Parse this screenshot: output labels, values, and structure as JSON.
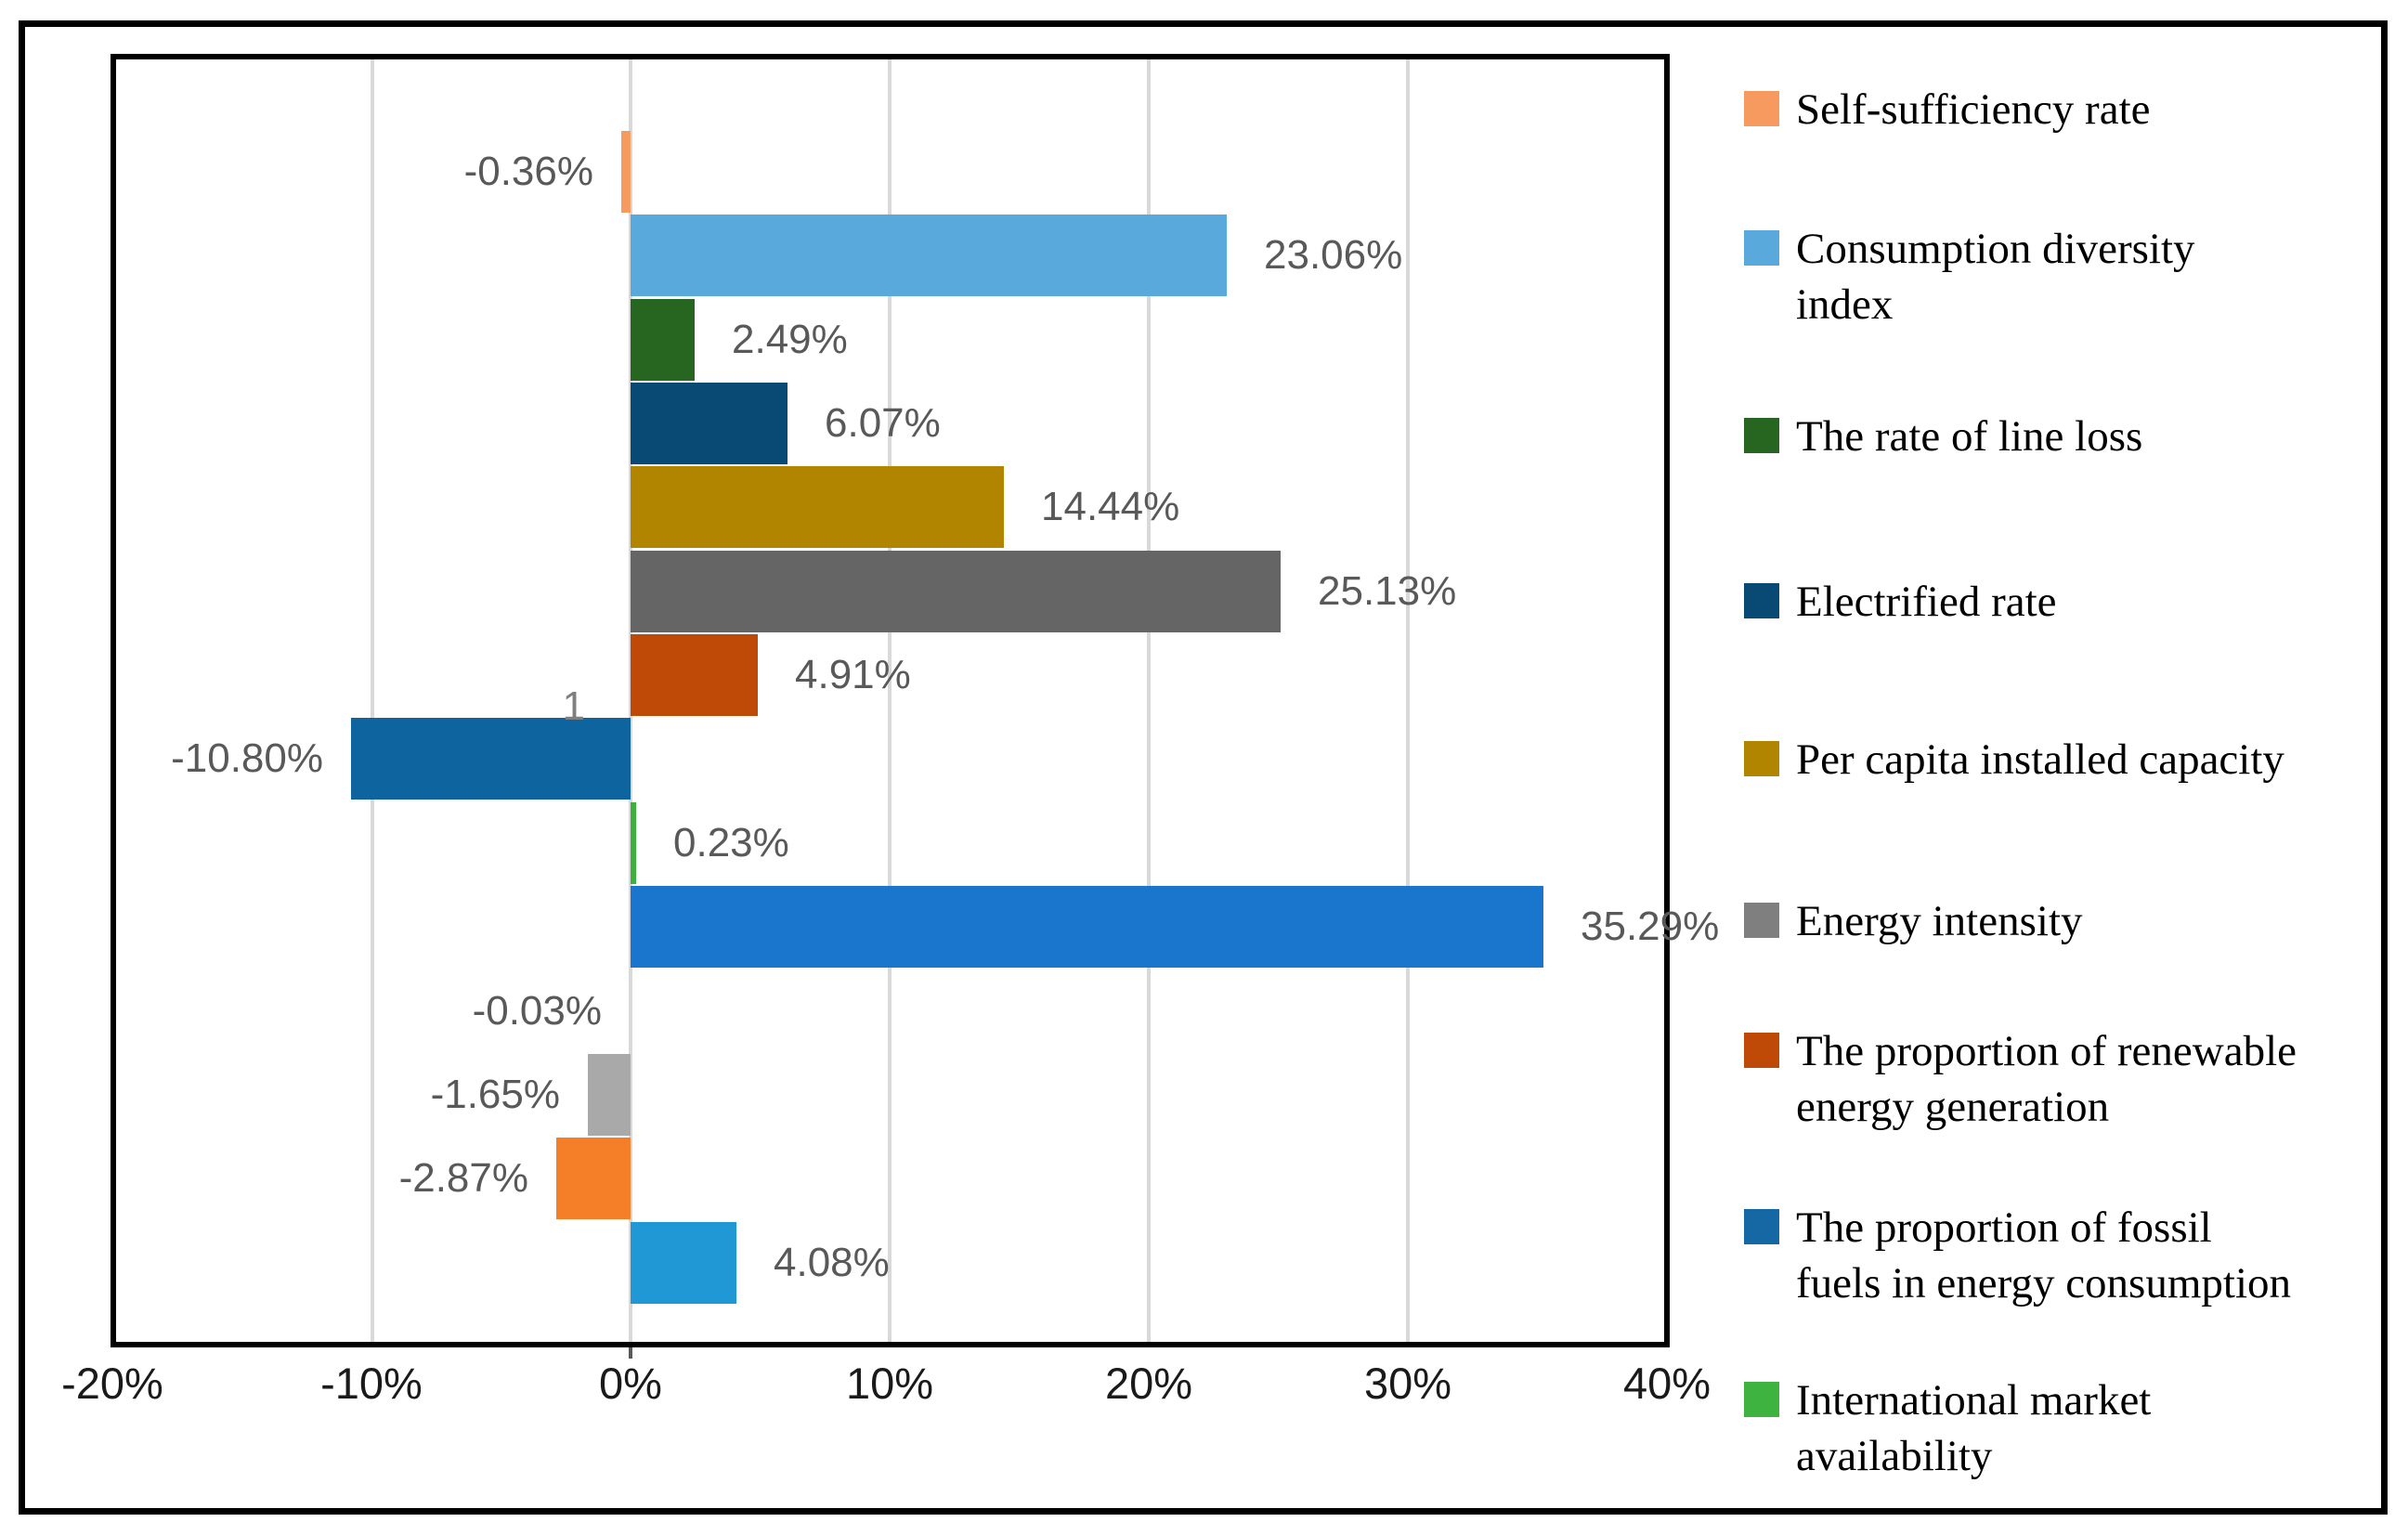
{
  "chart_data": {
    "type": "bar",
    "orientation": "horizontal",
    "x_axis": {
      "tick_labels": [
        "-20%",
        "-10%",
        "0%",
        "10%",
        "20%",
        "30%",
        "40%"
      ],
      "min_percent": -20,
      "max_percent": 40,
      "gridlines": true,
      "gridline_color": "#d9d9d9"
    },
    "category_axis_label": "1",
    "bars": [
      {
        "name": "Self-sufficiency rate",
        "value": -0.36,
        "label": "-0.36%",
        "color": "#F69A60"
      },
      {
        "name": "Consumption diversity index",
        "value": 23.06,
        "label": "23.06%",
        "color": "#59A9DC"
      },
      {
        "name": "The rate of line loss",
        "value": 2.49,
        "label": "2.49%",
        "color": "#276621"
      },
      {
        "name": "Electrified rate",
        "value": 6.07,
        "label": "6.07%",
        "color": "#084A73"
      },
      {
        "name": "Per capita installed capacity",
        "value": 14.44,
        "label": "14.44%",
        "color": "#B28500"
      },
      {
        "name": "Energy intensity",
        "value": 25.13,
        "label": "25.13%",
        "color": "#656565"
      },
      {
        "name": "The proportion of renewable energy generation",
        "value": 4.91,
        "label": "4.91%",
        "color": "#BF4A08"
      },
      {
        "name": "The proportion of fossil fuels in energy consumption",
        "value": -10.8,
        "label": "-10.80%",
        "color": "#0E649E"
      },
      {
        "name": "International market availability",
        "value": 0.23,
        "label": "0.23%",
        "color": "#3DB13D"
      },
      {
        "name": null,
        "value": 35.29,
        "label": "35.29%",
        "color": "#1A75CC"
      },
      {
        "name": null,
        "value": -0.03,
        "label": "-0.03%",
        "color": null
      },
      {
        "name": null,
        "value": -1.65,
        "label": "-1.65%",
        "color": "#A9A9A9"
      },
      {
        "name": null,
        "value": -2.87,
        "label": "-2.87%",
        "color": "#F57E28"
      },
      {
        "name": null,
        "value": 4.08,
        "label": "4.08%",
        "color": "#2098D5"
      }
    ],
    "legend": {
      "position": "right",
      "items": [
        {
          "label": "Self-sufficiency rate",
          "color": "#F69A60"
        },
        {
          "label": "Consumption diversity index",
          "color": "#59A9DC"
        },
        {
          "label": "The rate of line loss",
          "color": "#276621"
        },
        {
          "label": "Electrified rate",
          "color": "#084A73"
        },
        {
          "label": "Per capita installed capacity",
          "color": "#B28500"
        },
        {
          "label": "Energy intensity",
          "color": "#7F7F7F"
        },
        {
          "label": "The proportion of renewable energy generation",
          "color": "#BF4A08"
        },
        {
          "label": "The proportion of fossil fuels in energy consumption",
          "color": "#1568A4"
        },
        {
          "label": "International market availability",
          "color": "#3FB33F"
        }
      ]
    },
    "label_color": "#595959",
    "axis_label_color": "#1a1a1a"
  }
}
